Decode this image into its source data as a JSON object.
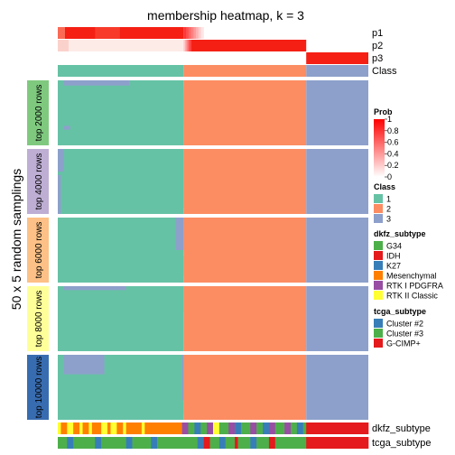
{
  "chart_data": {
    "type": "heatmap",
    "title": "membership heatmap, k = 3",
    "ylabel": "50 x 5 random samplings",
    "n_samples": 300,
    "top_rows": [
      "p1",
      "p2",
      "p3",
      "Class"
    ],
    "bottom_rows": [
      "dkfz_subtype",
      "tcga_subtype"
    ],
    "row_groups": [
      {
        "label": "top 2000 rows",
        "color": "#7fc97f"
      },
      {
        "label": "top 4000 rows",
        "color": "#beaed4"
      },
      {
        "label": "top 6000 rows",
        "color": "#fdc086"
      },
      {
        "label": "top 8000 rows",
        "color": "#ffff99"
      },
      {
        "label": "top 10000 rows",
        "color": "#386cb0"
      }
    ],
    "class_membership": {
      "class1_range": [
        0,
        0.405
      ],
      "class2_range": [
        0.405,
        0.8
      ],
      "class3_range": [
        0.8,
        1.0
      ],
      "class1_share": 0.405,
      "class2_share": 0.395,
      "class3_share": 0.2
    },
    "legend": {
      "prob": {
        "title": "Prob",
        "ticks": [
          "1",
          "0.8",
          "0.6",
          "0.4",
          "0.2",
          "0"
        ],
        "low": "#ffffff",
        "high": "#ff0000"
      },
      "class": {
        "title": "Class",
        "items": [
          {
            "label": "1",
            "color": "#66c2a5"
          },
          {
            "label": "2",
            "color": "#fc8d62"
          },
          {
            "label": "3",
            "color": "#8da0cb"
          }
        ]
      },
      "dkfz": {
        "title": "dkfz_subtype",
        "items": [
          {
            "label": "G34",
            "color": "#4daf4a"
          },
          {
            "label": "IDH",
            "color": "#e41a1c"
          },
          {
            "label": "K27",
            "color": "#377eb8"
          },
          {
            "label": "Mesenchymal",
            "color": "#ff7f00"
          },
          {
            "label": "RTK I PDGFRA",
            "color": "#984ea3"
          },
          {
            "label": "RTK II Classic",
            "color": "#ffff33"
          }
        ]
      },
      "tcga": {
        "title": "tcga_subtype",
        "items": [
          {
            "label": "Cluster #2",
            "color": "#377eb8"
          },
          {
            "label": "Cluster #3",
            "color": "#4daf4a"
          },
          {
            "label": "G-CIMP+",
            "color": "#e41a1c"
          }
        ]
      }
    }
  }
}
